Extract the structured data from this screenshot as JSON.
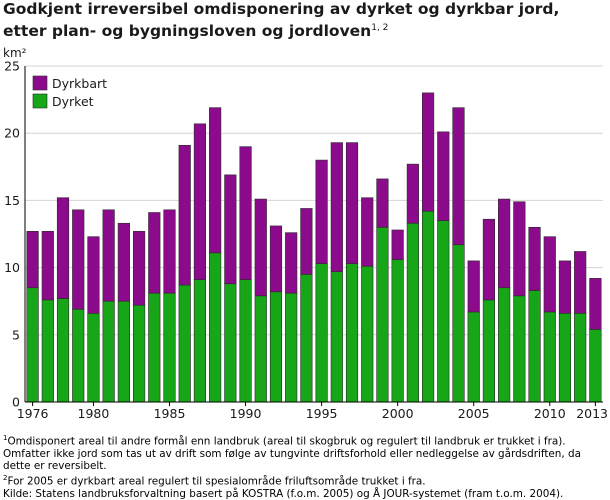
{
  "title": {
    "text": "Godkjent irreversibel omdisponering av dyrket og dyrkbar jord, etter plan- og bygningsloven og jordloven",
    "footnote_marks": "1, 2"
  },
  "notes": {
    "note1_mark": "1",
    "note1": "Omdisponert areal til andre formål enn landbruk (areal til skogbruk og regulert til landbruk er trukket i fra). Omfatter ikke jord som tas ut av drift som følge av tungvinte driftsforhold eller nedleggelse av gårdsdriften, da dette er reversibelt.",
    "note2_mark": "2",
    "note2": "For 2005 er dyrkbart areal regulert til spesialområde friluftsområde trukket i fra.",
    "source": "Kilde: Statens landbruksforvaltning basert på KOSTRA (f.o.m. 2005) og Å JOUR-systemet (fram t.o.m. 2004)."
  },
  "colors": {
    "dyrkbart": "#8c0a8c",
    "dyrket": "#17a617",
    "grid": "#d4d4d4",
    "axis": "#000000"
  },
  "chart_data": {
    "type": "bar",
    "stacked": true,
    "ylabel": "km²",
    "ylim": [
      0,
      25
    ],
    "yticks": [
      0,
      5,
      10,
      15,
      20,
      25
    ],
    "xtick_labels": [
      "1976",
      "1980",
      "1985",
      "1990",
      "1995",
      "2000",
      "2005",
      "2010",
      "2013"
    ],
    "legend": {
      "placement": "top-left",
      "entries": [
        "Dyrkbart",
        "Dyrket"
      ]
    },
    "grid": true,
    "categories": [
      "1976",
      "1977",
      "1978",
      "1979",
      "1980",
      "1981",
      "1982",
      "1983",
      "1984",
      "1985",
      "1986",
      "1987",
      "1988",
      "1989",
      "1990",
      "1991",
      "1992",
      "1993",
      "1994",
      "1995",
      "1996",
      "1997",
      "1998",
      "1999",
      "2000",
      "2001",
      "2002",
      "2003",
      "2004",
      "2005",
      "2006",
      "2007",
      "2008",
      "2009",
      "2010",
      "2011",
      "2012",
      "2013"
    ],
    "series": [
      {
        "name": "Dyrket",
        "values": [
          8.5,
          7.6,
          7.7,
          6.9,
          6.6,
          7.5,
          7.5,
          7.2,
          8.1,
          8.1,
          8.7,
          9.1,
          11.1,
          8.8,
          9.1,
          7.9,
          8.2,
          8.1,
          9.5,
          10.3,
          9.7,
          10.3,
          10.1,
          13.0,
          10.6,
          13.3,
          14.2,
          13.5,
          11.7,
          6.7,
          7.6,
          8.5,
          7.9,
          8.3,
          6.7,
          6.6,
          6.6,
          5.4
        ]
      },
      {
        "name": "Dyrkbart",
        "values": [
          4.2,
          5.1,
          7.5,
          7.4,
          5.7,
          6.8,
          5.8,
          5.5,
          6.0,
          6.2,
          10.4,
          11.6,
          10.8,
          8.1,
          9.9,
          7.2,
          4.9,
          4.5,
          4.9,
          7.7,
          9.6,
          9.0,
          5.1,
          3.6,
          2.2,
          4.4,
          8.8,
          6.6,
          10.2,
          3.8,
          6.0,
          6.6,
          7.0,
          4.7,
          5.6,
          3.9,
          4.6,
          3.8
        ]
      }
    ]
  }
}
